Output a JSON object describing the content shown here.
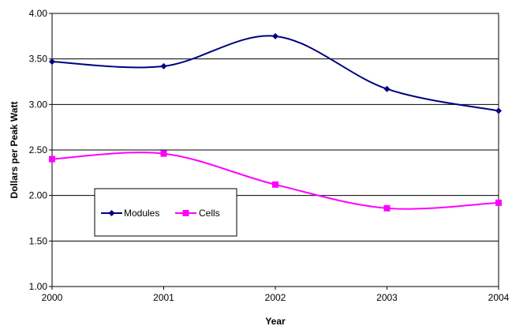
{
  "chart_data": {
    "type": "line",
    "title": "",
    "xlabel": "Year",
    "ylabel": "Dollars per Peak Watt",
    "x": [
      "2000",
      "2001",
      "2002",
      "2003",
      "2004"
    ],
    "ylim": [
      1.0,
      4.0
    ],
    "yticks": [
      "1.00",
      "1.50",
      "2.00",
      "2.50",
      "3.00",
      "3.50",
      "4.00"
    ],
    "grid": true,
    "legend_position": "left, lower-middle, inside plot",
    "series": [
      {
        "name": "Modules",
        "values": [
          3.47,
          3.42,
          3.75,
          3.17,
          2.93
        ],
        "color": "#000080",
        "marker": "diamond"
      },
      {
        "name": "Cells",
        "values": [
          2.4,
          2.46,
          2.12,
          1.86,
          1.92
        ],
        "color": "#ff00ff",
        "marker": "square"
      }
    ]
  }
}
